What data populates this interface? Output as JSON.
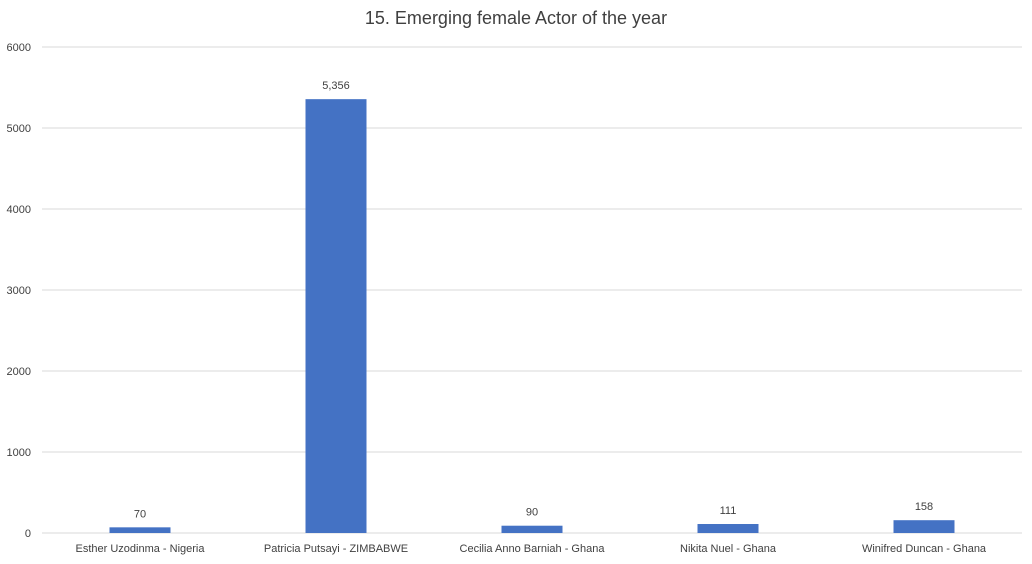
{
  "chart_data": {
    "type": "bar",
    "title": "15. Emerging female Actor of the year",
    "xlabel": "",
    "ylabel": "",
    "categories": [
      "Esther Uzodinma - Nigeria",
      "Patricia Putsayi - ZIMBABWE",
      "Cecilia Anno Barniah - Ghana",
      "Nikita Nuel - Ghana",
      "Winifred Duncan - Ghana"
    ],
    "values": [
      70,
      5356,
      90,
      111,
      158
    ],
    "data_labels": [
      "70",
      "5,356",
      "90",
      "111",
      "158"
    ],
    "ylim": [
      0,
      6000
    ],
    "yticks": [
      0,
      1000,
      2000,
      3000,
      4000,
      5000,
      6000
    ],
    "ytick_labels": [
      "0",
      "1000",
      "2000",
      "3000",
      "4000",
      "5000",
      "6000"
    ],
    "grid": true,
    "legend": "none",
    "bar_color": "#4472C4",
    "grid_color": "#D9D9D9"
  }
}
